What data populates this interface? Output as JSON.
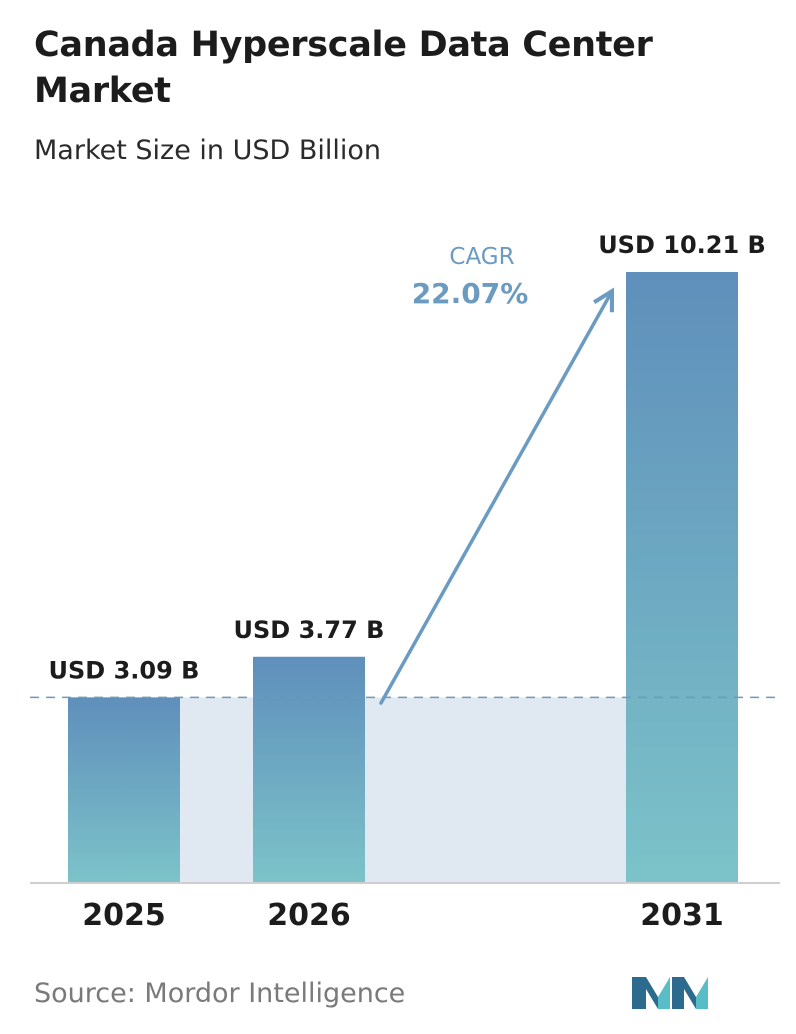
{
  "title": "Canada Hyperscale Data Center Market",
  "subtitle": "Market Size in USD Billion",
  "source_text": "Source:  Mordor Intelligence",
  "cagr": {
    "label": "CAGR",
    "value": "22.07%"
  },
  "colors": {
    "bar_top": "#5f8fbb",
    "bar_bottom": "#7cc3c9",
    "band": "#e0e8f1",
    "reference_line": "#6e9ab9",
    "arrow": "#6b9bc1",
    "logo_dark": "#2d6b8e",
    "logo_light": "#58bdc6"
  },
  "chart_data": {
    "type": "bar",
    "categories": [
      "2025",
      "2026",
      "2031"
    ],
    "values": [
      3.09,
      3.77,
      10.21
    ],
    "data_labels": [
      "USD 3.09 B",
      "USD 3.77 B",
      "USD 10.21 B"
    ],
    "title": "Canada Hyperscale Data Center Market",
    "subtitle": "Market Size in USD Billion",
    "ylim": [
      0,
      10.21
    ],
    "reference_line_value": 3.09,
    "grid": false,
    "legend": "none"
  }
}
